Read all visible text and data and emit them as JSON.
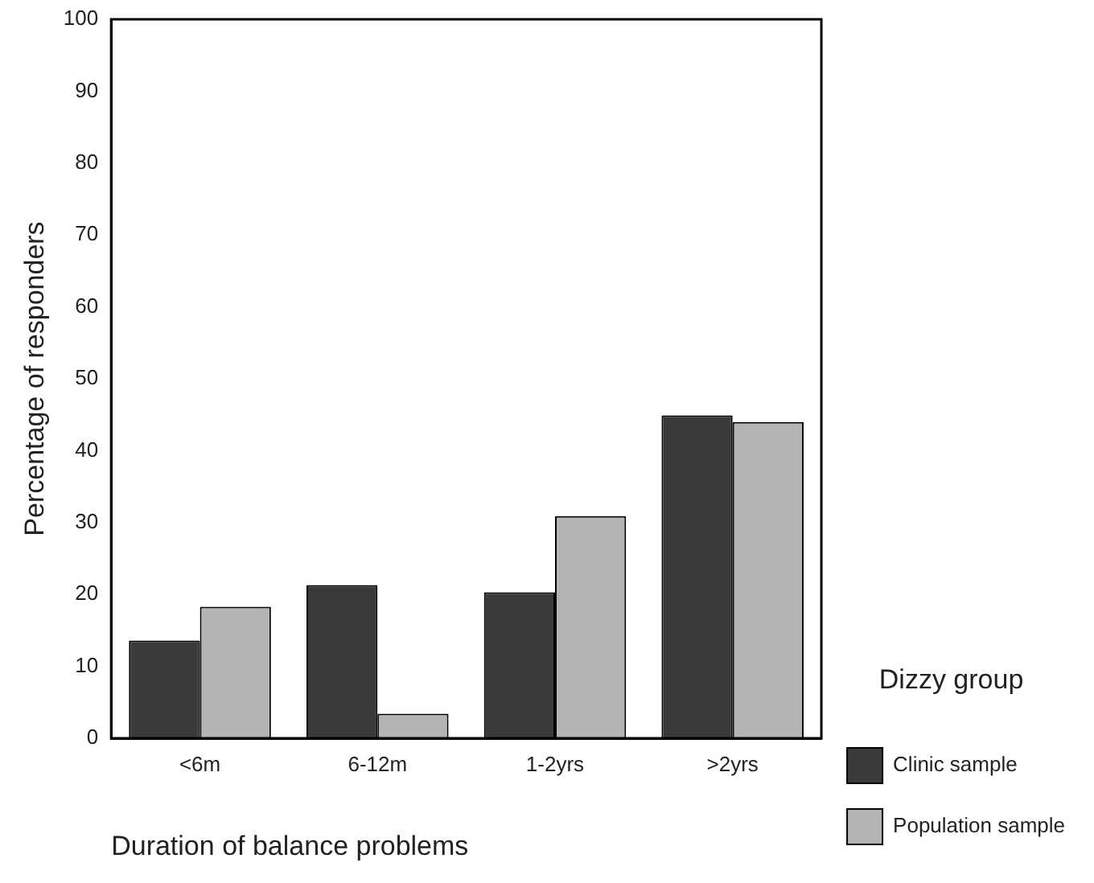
{
  "chart_data": {
    "type": "bar",
    "xlabel": "Duration of balance problems",
    "ylabel": "Percentage of responders",
    "legend_title": "Dizzy group",
    "categories": [
      "<6m",
      "6-12m",
      "1-2yrs",
      ">2yrs"
    ],
    "series": [
      {
        "name": "Clinic sample",
        "color": "#3a3a3a",
        "values": [
          13.6,
          21.3,
          20.3,
          44.9
        ]
      },
      {
        "name": "Population sample",
        "color": "#b4b4b4",
        "values": [
          18.3,
          3.4,
          30.9,
          44.0
        ]
      }
    ],
    "ylim": [
      0,
      100
    ],
    "yticks": [
      0,
      10,
      20,
      30,
      40,
      50,
      60,
      70,
      80,
      90,
      100
    ],
    "grid": false,
    "legend": "right"
  }
}
